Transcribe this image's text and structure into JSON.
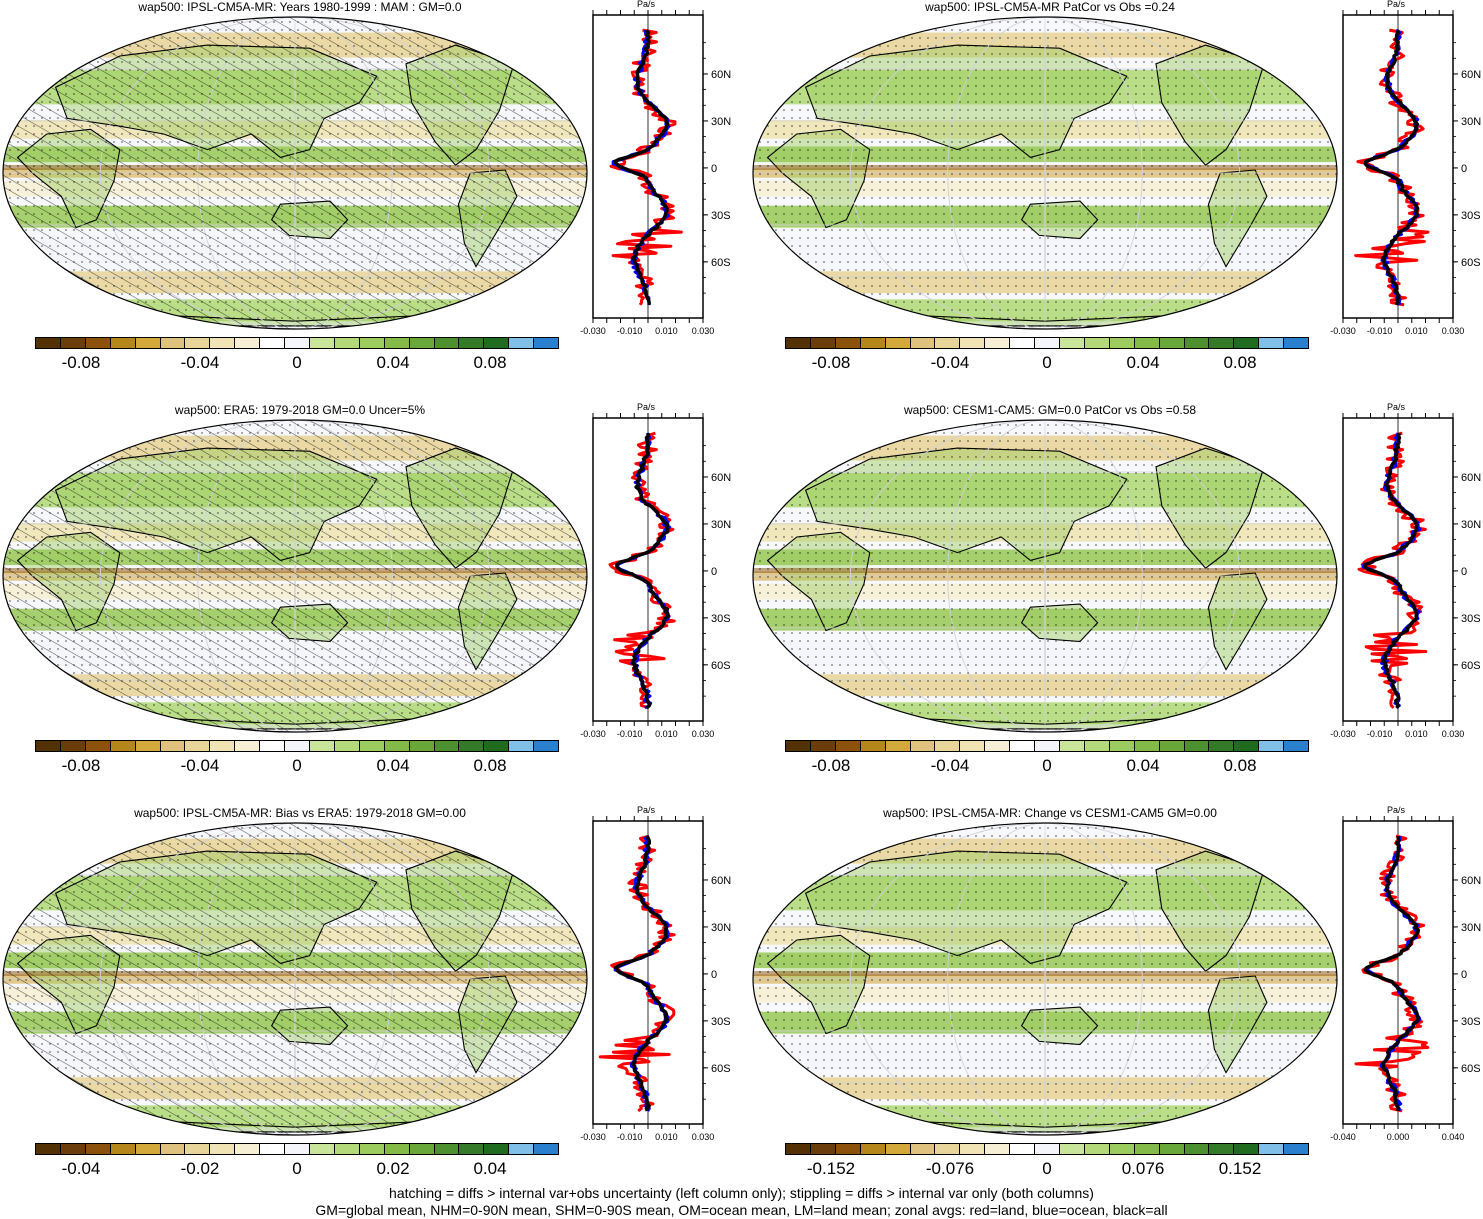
{
  "panels": [
    {
      "id": "p1",
      "title": "wap500: IPSL-CM5A-MR: Years 1980-1999 : MAM : GM=0.0",
      "hatching": true,
      "colorbar_labels": [
        "-0.08",
        "-0.04",
        "0",
        "0.04",
        "0.08"
      ],
      "zonal": {
        "unit": "Pa/s",
        "x_ticks": [
          "-0.030",
          "-0.010",
          "0.010",
          "0.030"
        ],
        "y_ticks": [
          "60N",
          "30N",
          "0",
          "30S",
          "60S"
        ]
      }
    },
    {
      "id": "p2",
      "title": "wap500: IPSL-CM5A-MR PatCor vs Obs =0.24",
      "hatching": false,
      "colorbar_labels": [
        "-0.08",
        "-0.04",
        "0",
        "0.04",
        "0.08"
      ],
      "zonal": {
        "unit": "Pa/s",
        "x_ticks": [
          "-0.030",
          "-0.010",
          "0.010",
          "0.030"
        ],
        "y_ticks": [
          "60N",
          "30N",
          "0",
          "30S",
          "60S"
        ]
      }
    },
    {
      "id": "p3",
      "title": "wap500: ERA5: 1979-2018 GM=0.0 Uncer=5%",
      "hatching": true,
      "colorbar_labels": [
        "-0.08",
        "-0.04",
        "0",
        "0.04",
        "0.08"
      ],
      "zonal": {
        "unit": "Pa/s",
        "x_ticks": [
          "-0.030",
          "-0.010",
          "0.010",
          "0.030"
        ],
        "y_ticks": [
          "60N",
          "30N",
          "0",
          "30S",
          "60S"
        ]
      }
    },
    {
      "id": "p4",
      "title": "wap500: CESM1-CAM5: GM=0.0 PatCor vs Obs =0.58",
      "hatching": false,
      "colorbar_labels": [
        "-0.08",
        "-0.04",
        "0",
        "0.04",
        "0.08"
      ],
      "zonal": {
        "unit": "Pa/s",
        "x_ticks": [
          "-0.030",
          "-0.010",
          "0.010",
          "0.030"
        ],
        "y_ticks": [
          "60N",
          "30N",
          "0",
          "30S",
          "60S"
        ]
      }
    },
    {
      "id": "p5",
      "title": "wap500: IPSL-CM5A-MR: Bias vs ERA5: 1979-2018 GM=0.00",
      "hatching": true,
      "colorbar_labels": [
        "-0.04",
        "-0.02",
        "0",
        "0.02",
        "0.04"
      ],
      "zonal": {
        "unit": "Pa/s",
        "x_ticks": [
          "-0.030",
          "-0.010",
          "0.010",
          "0.030"
        ],
        "y_ticks": [
          "60N",
          "30N",
          "0",
          "30S",
          "60S"
        ]
      }
    },
    {
      "id": "p6",
      "title": "wap500: IPSL-CM5A-MR: Change vs CESM1-CAM5 GM=0.00",
      "hatching": false,
      "colorbar_labels": [
        "-0.152",
        "-0.076",
        "0",
        "0.076",
        "0.152"
      ],
      "zonal": {
        "unit": "Pa/s",
        "x_ticks": [
          "-0.040",
          "0.000",
          "0.040"
        ],
        "y_ticks": [
          "60N",
          "30N",
          "0",
          "30S",
          "60S"
        ]
      }
    }
  ],
  "colorbar_colors": [
    "#543005",
    "#6b3d0a",
    "#8c510a",
    "#b5861a",
    "#d2a93a",
    "#dfc27d",
    "#e8d59a",
    "#f0e4b5",
    "#f6efd5",
    "#ffffff",
    "#f3f5fb",
    "#c8e59a",
    "#b3d97a",
    "#9ccb5e",
    "#84bb48",
    "#6aa73b",
    "#4d9030",
    "#357a28",
    "#1f6b20",
    "#7fbfe8",
    "#2a7fcf"
  ],
  "legend_colors": {
    "land": "#ff0000",
    "ocean": "#0000ff",
    "all": "#000000"
  },
  "footer": {
    "line1": "hatching = diffs > internal var+obs uncertainty (left column only); stippling = diffs > internal var only (both columns)",
    "line2": "GM=global mean, NHM=0-90N mean, SHM=0-90S mean, OM=ocean mean, LM=land mean; zonal avgs: red=land, blue=ocean, black=all"
  }
}
